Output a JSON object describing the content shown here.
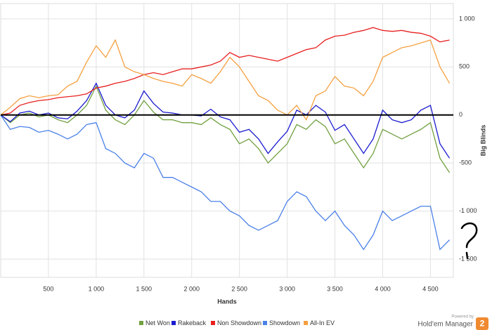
{
  "chart_data": {
    "type": "line",
    "x_label": "Hands",
    "y_label": "Big Blinds",
    "x": [
      0,
      100,
      200,
      300,
      400,
      500,
      600,
      700,
      800,
      900,
      1000,
      1100,
      1200,
      1300,
      1400,
      1500,
      1600,
      1700,
      1800,
      1900,
      2000,
      2100,
      2200,
      2300,
      2400,
      2500,
      2600,
      2700,
      2800,
      2900,
      3000,
      3100,
      3200,
      3300,
      3400,
      3500,
      3600,
      3700,
      3800,
      3900,
      4000,
      4100,
      4200,
      4300,
      4400,
      4500,
      4600,
      4700
    ],
    "series": [
      {
        "name": "Net Won",
        "color": "#70a040",
        "values": [
          0,
          -80,
          0,
          20,
          -20,
          0,
          -50,
          -80,
          0,
          100,
          300,
          50,
          -50,
          -100,
          0,
          150,
          30,
          -50,
          -50,
          -80,
          -80,
          -100,
          -30,
          -100,
          -150,
          -300,
          -250,
          -350,
          -500,
          -400,
          -300,
          -100,
          -150,
          -50,
          -120,
          -300,
          -250,
          -400,
          -550,
          -400,
          -150,
          -200,
          -250,
          -200,
          -150,
          -80,
          -450,
          -600
        ]
      },
      {
        "name": "Rakeback",
        "color": "#1a1ad0",
        "values": [
          0,
          -70,
          20,
          40,
          0,
          20,
          -30,
          -40,
          40,
          150,
          330,
          100,
          0,
          -30,
          50,
          250,
          120,
          30,
          20,
          0,
          0,
          -10,
          60,
          -20,
          -50,
          -180,
          -150,
          -250,
          -400,
          -280,
          -170,
          50,
          0,
          100,
          30,
          -160,
          -100,
          -250,
          -400,
          -250,
          50,
          -50,
          -80,
          -50,
          50,
          100,
          -300,
          -450
        ]
      },
      {
        "name": "Non Showdown",
        "color": "#e82020",
        "values": [
          0,
          20,
          100,
          130,
          150,
          160,
          180,
          190,
          200,
          220,
          280,
          300,
          330,
          350,
          380,
          420,
          440,
          420,
          450,
          480,
          480,
          500,
          520,
          560,
          650,
          600,
          620,
          600,
          580,
          560,
          600,
          640,
          680,
          700,
          780,
          820,
          830,
          860,
          880,
          910,
          880,
          870,
          880,
          860,
          850,
          820,
          760,
          780
        ]
      },
      {
        "name": "Showdown",
        "color": "#4a80e8",
        "values": [
          0,
          -150,
          -120,
          -130,
          -180,
          -160,
          -200,
          -250,
          -200,
          -100,
          -80,
          -350,
          -400,
          -500,
          -550,
          -400,
          -450,
          -650,
          -650,
          -700,
          -750,
          -800,
          -900,
          -900,
          -1000,
          -1050,
          -1150,
          -1200,
          -1150,
          -1100,
          -900,
          -800,
          -850,
          -1000,
          -1100,
          -1000,
          -1150,
          -1250,
          -1400,
          -1250,
          -1000,
          -1100,
          -1050,
          -1000,
          -950,
          -950,
          -1400,
          -1300
        ]
      },
      {
        "name": "All-In EV",
        "color": "#f5a040",
        "values": [
          0,
          80,
          170,
          200,
          180,
          200,
          210,
          300,
          350,
          550,
          720,
          600,
          780,
          500,
          450,
          420,
          380,
          350,
          330,
          300,
          420,
          380,
          330,
          450,
          600,
          500,
          350,
          200,
          150,
          50,
          0,
          100,
          -50,
          200,
          250,
          400,
          300,
          280,
          200,
          350,
          600,
          650,
          700,
          720,
          750,
          780,
          500,
          330
        ]
      }
    ],
    "xlim": [
      0,
      4740
    ],
    "ylim": [
      -1690,
      1160
    ],
    "xticks": [
      500,
      {
        "value": 1000,
        "label": "1 000"
      },
      {
        "value": 1500,
        "label": "1 500"
      },
      {
        "value": 2000,
        "label": "2 000"
      },
      {
        "value": 2500,
        "label": "2 500"
      },
      {
        "value": 3000,
        "label": "3 000"
      },
      {
        "value": 3500,
        "label": "3 500"
      },
      {
        "value": 4000,
        "label": "4 000"
      },
      {
        "value": 4500,
        "label": "4 500"
      }
    ],
    "yticks": [
      {
        "value": 1000,
        "label": "1 000"
      },
      500,
      0,
      -500,
      {
        "value": -1000,
        "label": "-1 000"
      },
      {
        "value": -1500,
        "label": "-1 500"
      }
    ],
    "grid": true,
    "zero_line": true,
    "legend": "bottom",
    "logo_caption": "Powered by",
    "logo_text": "Hold'em Manager",
    "logo_badge": "2"
  }
}
